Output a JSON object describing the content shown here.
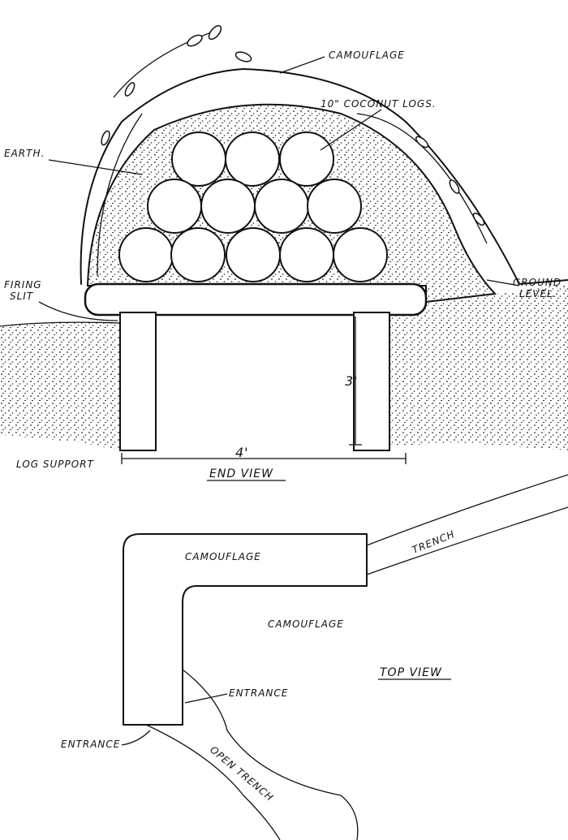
{
  "end_view": {
    "title": "END VIEW",
    "camouflage": "CAMOUFLAGE",
    "logs": "10\" COCONUT LOGS.",
    "earth": "EARTH.",
    "firing_slit": [
      "FIRING",
      "SLIT"
    ],
    "ground_level": [
      "GROUND",
      "LEVEL."
    ],
    "log_support": "LOG SUPPORT",
    "height": "3'",
    "width": "4'"
  },
  "top_view": {
    "title": "TOP VIEW",
    "camouflage_top": "CAMOUFLAGE",
    "camouflage_center": "CAMOUFLAGE",
    "trench": "TRENCH",
    "entrance_right": "ENTRANCE",
    "entrance_left": "ENTRANCE",
    "open_trench": "OPEN TRENCH"
  }
}
